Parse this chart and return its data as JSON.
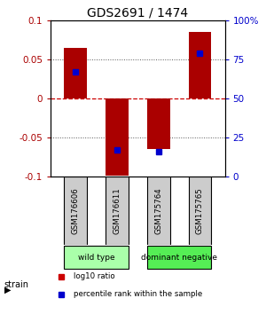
{
  "title": "GDS2691 / 1474",
  "samples": [
    "GSM176606",
    "GSM176611",
    "GSM175764",
    "GSM175765"
  ],
  "bar_values": [
    0.065,
    -0.098,
    -0.065,
    0.085
  ],
  "percentile_values": [
    0.034,
    -0.066,
    -0.068,
    0.058
  ],
  "ylim": [
    -0.1,
    0.1
  ],
  "yticks_left": [
    -0.1,
    -0.05,
    0,
    0.05,
    0.1
  ],
  "yticks_left_labels": [
    "-0.1",
    "-0.05",
    "0",
    "0.05",
    "0.1"
  ],
  "yticks_right_labels": [
    "0",
    "25",
    "50",
    "75",
    "100%"
  ],
  "bar_color": "#aa0000",
  "blue_color": "#0000cc",
  "zero_line_color": "#cc0000",
  "dotted_line_color": "#555555",
  "groups": [
    {
      "label": "wild type",
      "indices": [
        0,
        1
      ],
      "color": "#aaffaa"
    },
    {
      "label": "dominant negative",
      "indices": [
        2,
        3
      ],
      "color": "#55ee55"
    }
  ],
  "legend": [
    {
      "color": "#cc0000",
      "label": "log10 ratio"
    },
    {
      "color": "#0000cc",
      "label": "percentile rank within the sample"
    }
  ],
  "title_fontsize": 10,
  "tick_fontsize": 7.5,
  "bar_width": 0.55
}
